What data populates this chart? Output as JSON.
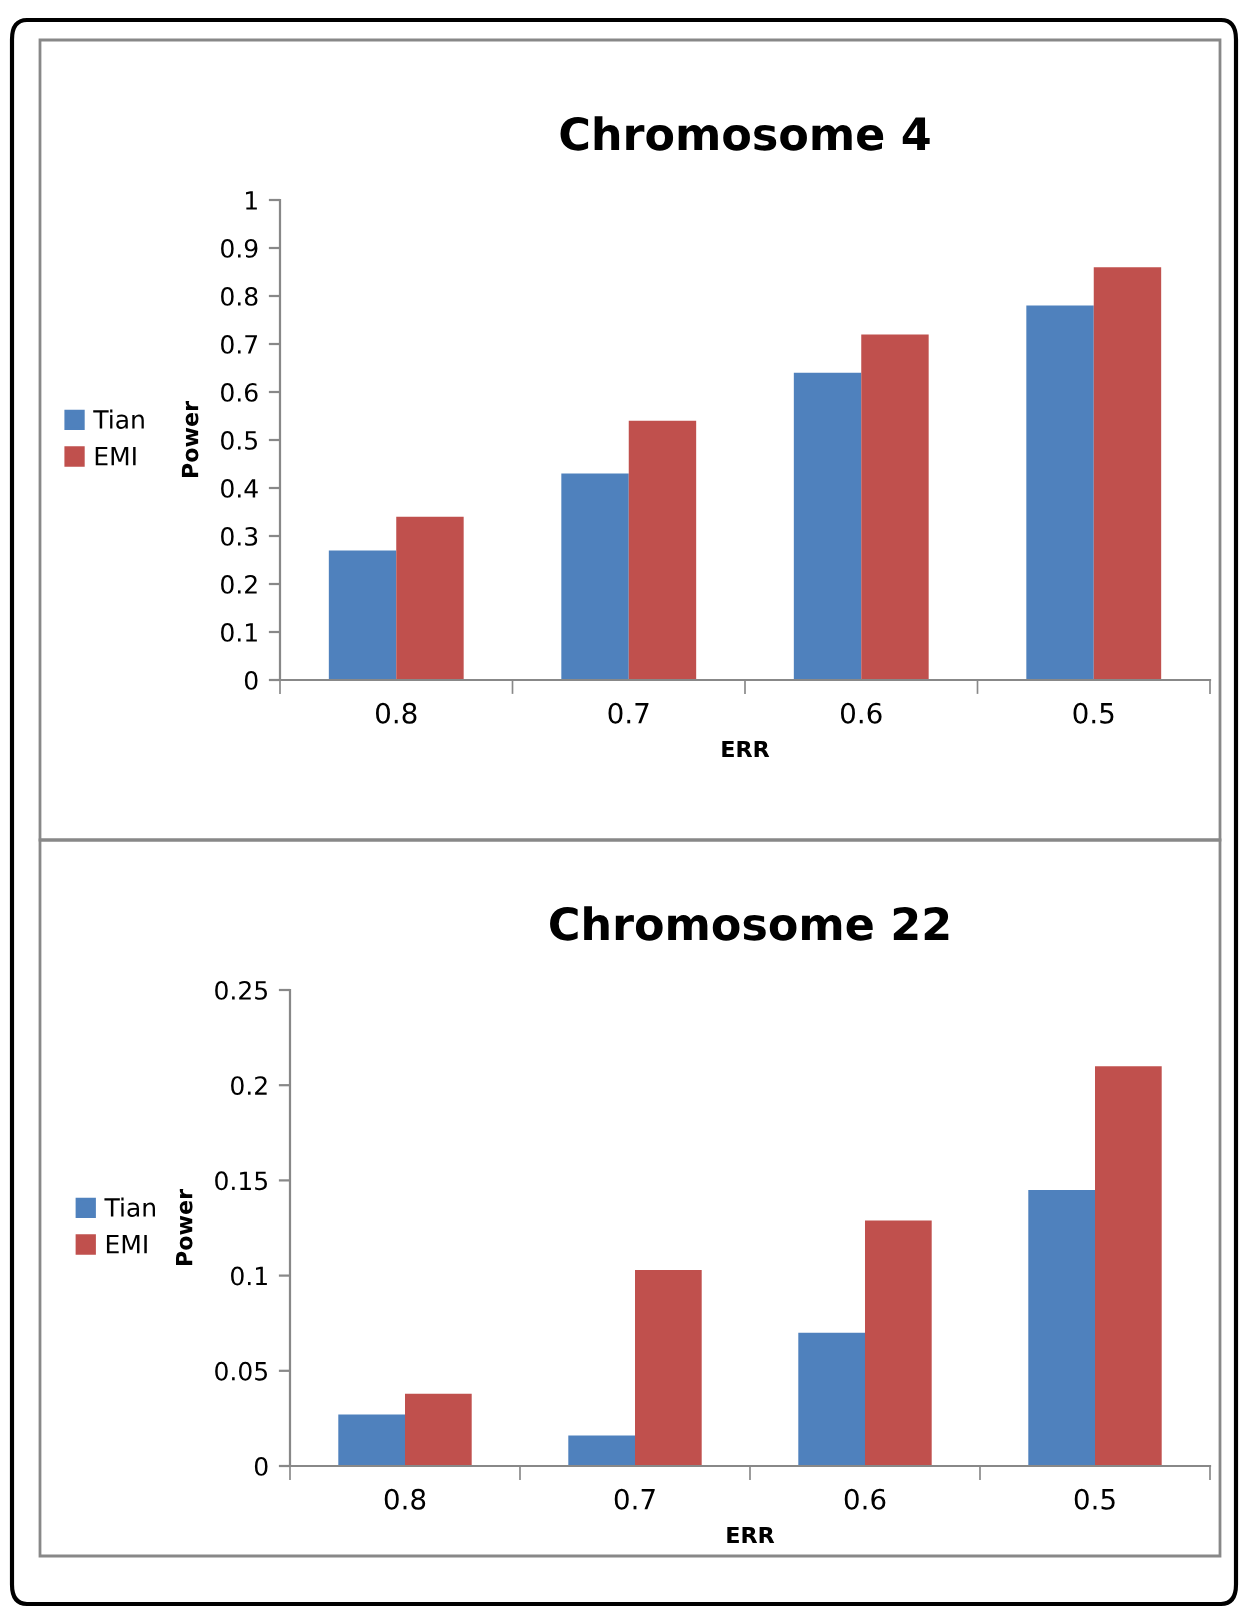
{
  "chart_data": [
    {
      "type": "bar",
      "title": "Chromosome 4",
      "xlabel": "ERR",
      "ylabel": "Power",
      "categories": [
        "0.8",
        "0.7",
        "0.6",
        "0.5"
      ],
      "series": [
        {
          "name": "Tian",
          "color": "#4f81bd",
          "values": [
            0.27,
            0.43,
            0.64,
            0.78
          ]
        },
        {
          "name": "EMI",
          "color": "#c0504d",
          "values": [
            0.34,
            0.54,
            0.72,
            0.86
          ]
        }
      ],
      "ylim": [
        0,
        1
      ],
      "yticks": [
        0,
        0.1,
        0.2,
        0.3,
        0.4,
        0.5,
        0.6,
        0.7,
        0.8,
        0.9,
        1
      ],
      "grid": false,
      "legend": "left"
    },
    {
      "type": "bar",
      "title": "Chromosome 22",
      "xlabel": "ERR",
      "ylabel": "Power",
      "categories": [
        "0.8",
        "0.7",
        "0.6",
        "0.5"
      ],
      "series": [
        {
          "name": "Tian",
          "color": "#4f81bd",
          "values": [
            0.027,
            0.016,
            0.07,
            0.145
          ]
        },
        {
          "name": "EMI",
          "color": "#c0504d",
          "values": [
            0.038,
            0.103,
            0.129,
            0.21
          ]
        }
      ],
      "ylim": [
        0,
        0.25
      ],
      "yticks": [
        0,
        0.05,
        0.1,
        0.15,
        0.2,
        0.25
      ],
      "grid": false,
      "legend": "left"
    }
  ]
}
